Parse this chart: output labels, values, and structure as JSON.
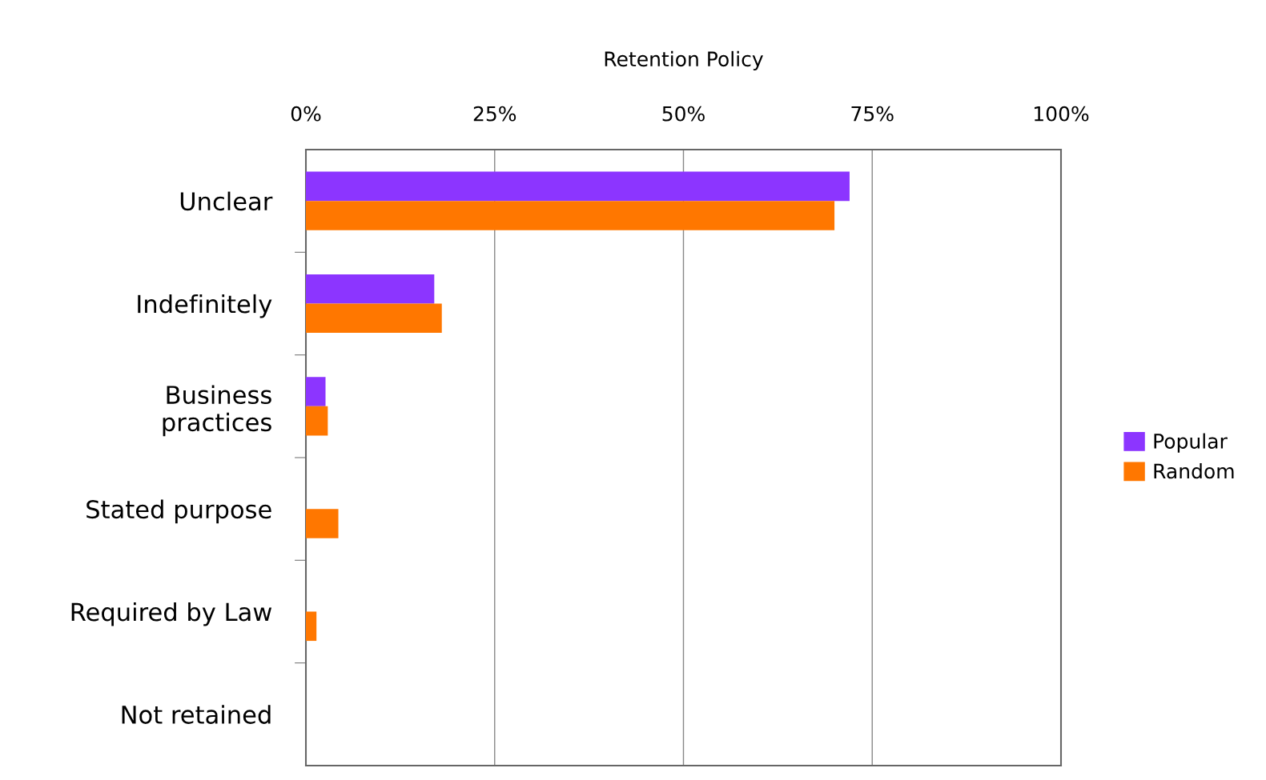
{
  "chart_data": {
    "type": "bar",
    "orientation": "horizontal",
    "title": "Retention Policy",
    "categories": [
      "Unclear",
      "Indefinitely",
      "Business\npractices",
      "Stated purpose",
      "Required by Law",
      "Not retained"
    ],
    "series": [
      {
        "name": "Popular",
        "color": "#8c35ff",
        "values": [
          72,
          17,
          2.6,
          0,
          0,
          0
        ]
      },
      {
        "name": "Random",
        "color": "#ff7700",
        "values": [
          70,
          18,
          2.9,
          4.3,
          1.4,
          0
        ]
      }
    ],
    "xlim": [
      0,
      100
    ],
    "xticks": [
      {
        "value": 0,
        "label": "0%"
      },
      {
        "value": 25,
        "label": "25%"
      },
      {
        "value": 50,
        "label": "50%"
      },
      {
        "value": 75,
        "label": "75%"
      },
      {
        "value": 100,
        "label": "100%"
      }
    ],
    "grid": "x",
    "legend": "right"
  }
}
